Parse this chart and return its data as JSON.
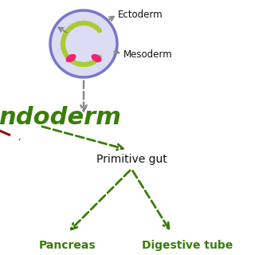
{
  "bg_color": "#ffffff",
  "ectoderm_label": "Ectoderm",
  "mesoderm_label": "Mesoderm",
  "endoderm_label": "ndoderm",
  "primitive_gut_label": "Primitive gut",
  "pancreas_label": "Pancreas",
  "digestive_tube_label": "Digestive tube",
  "dark_green": "#3a7d0a",
  "gray": "#888888",
  "purple_fill": "#dcdcf5",
  "purple_edge": "#7777cc",
  "lime_green": "#aacc33",
  "pink": "#ee2277",
  "dark_red": "#8b1010",
  "black": "#111111"
}
